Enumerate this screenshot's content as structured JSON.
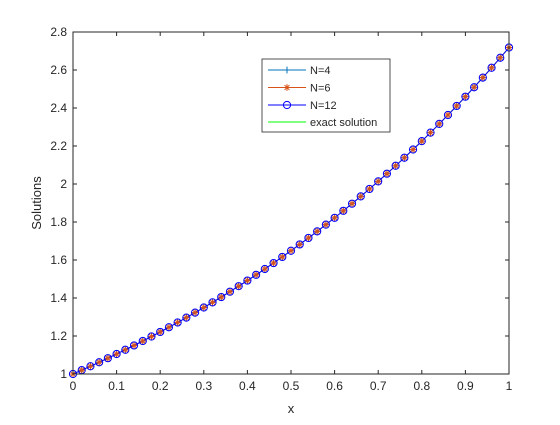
{
  "chart_data": {
    "type": "line",
    "xlabel": "x",
    "ylabel": "Solutions",
    "xlim": [
      0,
      1
    ],
    "ylim": [
      1,
      2.8
    ],
    "x_ticks": [
      "0",
      "0.1",
      "0.2",
      "0.3",
      "0.4",
      "0.5",
      "0.6",
      "0.7",
      "0.8",
      "0.9",
      "1"
    ],
    "y_ticks": [
      "1",
      "1.2",
      "1.4",
      "1.6",
      "1.8",
      "2",
      "2.2",
      "2.4",
      "2.6",
      "2.8"
    ],
    "grid": false,
    "legend_position": "top-center",
    "x": [
      0,
      0.02,
      0.04,
      0.06,
      0.08,
      0.1,
      0.12,
      0.14,
      0.16,
      0.18,
      0.2,
      0.22,
      0.24,
      0.26,
      0.28,
      0.3,
      0.32,
      0.34,
      0.36,
      0.38,
      0.4,
      0.42,
      0.44,
      0.46,
      0.48,
      0.5,
      0.52,
      0.54,
      0.56,
      0.58,
      0.6,
      0.62,
      0.64,
      0.66,
      0.68,
      0.7,
      0.72,
      0.74,
      0.76,
      0.78,
      0.8,
      0.82,
      0.84,
      0.86,
      0.88,
      0.9,
      0.92,
      0.94,
      0.96,
      0.98,
      1
    ],
    "series": [
      {
        "name": "N=4",
        "color": "#0072BD",
        "marker": "plus",
        "values": [
          1,
          1.0202,
          1.0408,
          1.0618,
          1.0833,
          1.1052,
          1.1275,
          1.1503,
          1.1735,
          1.1972,
          1.2214,
          1.2461,
          1.2712,
          1.2969,
          1.3231,
          1.3499,
          1.3771,
          1.4049,
          1.4333,
          1.4623,
          1.4918,
          1.522,
          1.5527,
          1.584,
          1.6161,
          1.6487,
          1.682,
          1.716,
          1.7507,
          1.786,
          1.8221,
          1.8589,
          1.8965,
          1.9348,
          1.9739,
          2.0138,
          2.0544,
          2.0959,
          2.1383,
          2.1815,
          2.2255,
          2.2705,
          2.3164,
          2.3632,
          2.4109,
          2.4596,
          2.5093,
          2.56,
          2.6117,
          2.6645,
          2.7183
        ]
      },
      {
        "name": "N=6",
        "color": "#D95319",
        "marker": "asterisk",
        "values": [
          1,
          1.0202,
          1.0408,
          1.0618,
          1.0833,
          1.1052,
          1.1275,
          1.1503,
          1.1735,
          1.1972,
          1.2214,
          1.2461,
          1.2712,
          1.2969,
          1.3231,
          1.3499,
          1.3771,
          1.4049,
          1.4333,
          1.4623,
          1.4918,
          1.522,
          1.5527,
          1.584,
          1.6161,
          1.6487,
          1.682,
          1.716,
          1.7507,
          1.786,
          1.8221,
          1.8589,
          1.8965,
          1.9348,
          1.9739,
          2.0138,
          2.0544,
          2.0959,
          2.1383,
          2.1815,
          2.2255,
          2.2705,
          2.3164,
          2.3632,
          2.4109,
          2.4596,
          2.5093,
          2.56,
          2.6117,
          2.6645,
          2.7183
        ]
      },
      {
        "name": "N=12",
        "color": "#0000FF",
        "marker": "circle",
        "values": [
          1,
          1.0202,
          1.0408,
          1.0618,
          1.0833,
          1.1052,
          1.1275,
          1.1503,
          1.1735,
          1.1972,
          1.2214,
          1.2461,
          1.2712,
          1.2969,
          1.3231,
          1.3499,
          1.3771,
          1.4049,
          1.4333,
          1.4623,
          1.4918,
          1.522,
          1.5527,
          1.584,
          1.6161,
          1.6487,
          1.682,
          1.716,
          1.7507,
          1.786,
          1.8221,
          1.8589,
          1.8965,
          1.9348,
          1.9739,
          2.0138,
          2.0544,
          2.0959,
          2.1383,
          2.1815,
          2.2255,
          2.2705,
          2.3164,
          2.3632,
          2.4109,
          2.4596,
          2.5093,
          2.56,
          2.6117,
          2.6645,
          2.7183
        ]
      },
      {
        "name": "exact solution",
        "color": "#00FF00",
        "marker": "none",
        "values": [
          1,
          1.0202,
          1.0408,
          1.0618,
          1.0833,
          1.1052,
          1.1275,
          1.1503,
          1.1735,
          1.1972,
          1.2214,
          1.2461,
          1.2712,
          1.2969,
          1.3231,
          1.3499,
          1.3771,
          1.4049,
          1.4333,
          1.4623,
          1.4918,
          1.522,
          1.5527,
          1.584,
          1.6161,
          1.6487,
          1.682,
          1.716,
          1.7507,
          1.786,
          1.8221,
          1.8589,
          1.8965,
          1.9348,
          1.9739,
          2.0138,
          2.0544,
          2.0959,
          2.1383,
          2.1815,
          2.2255,
          2.2705,
          2.3164,
          2.3632,
          2.4109,
          2.4596,
          2.5093,
          2.56,
          2.6117,
          2.6645,
          2.7183
        ]
      }
    ]
  }
}
